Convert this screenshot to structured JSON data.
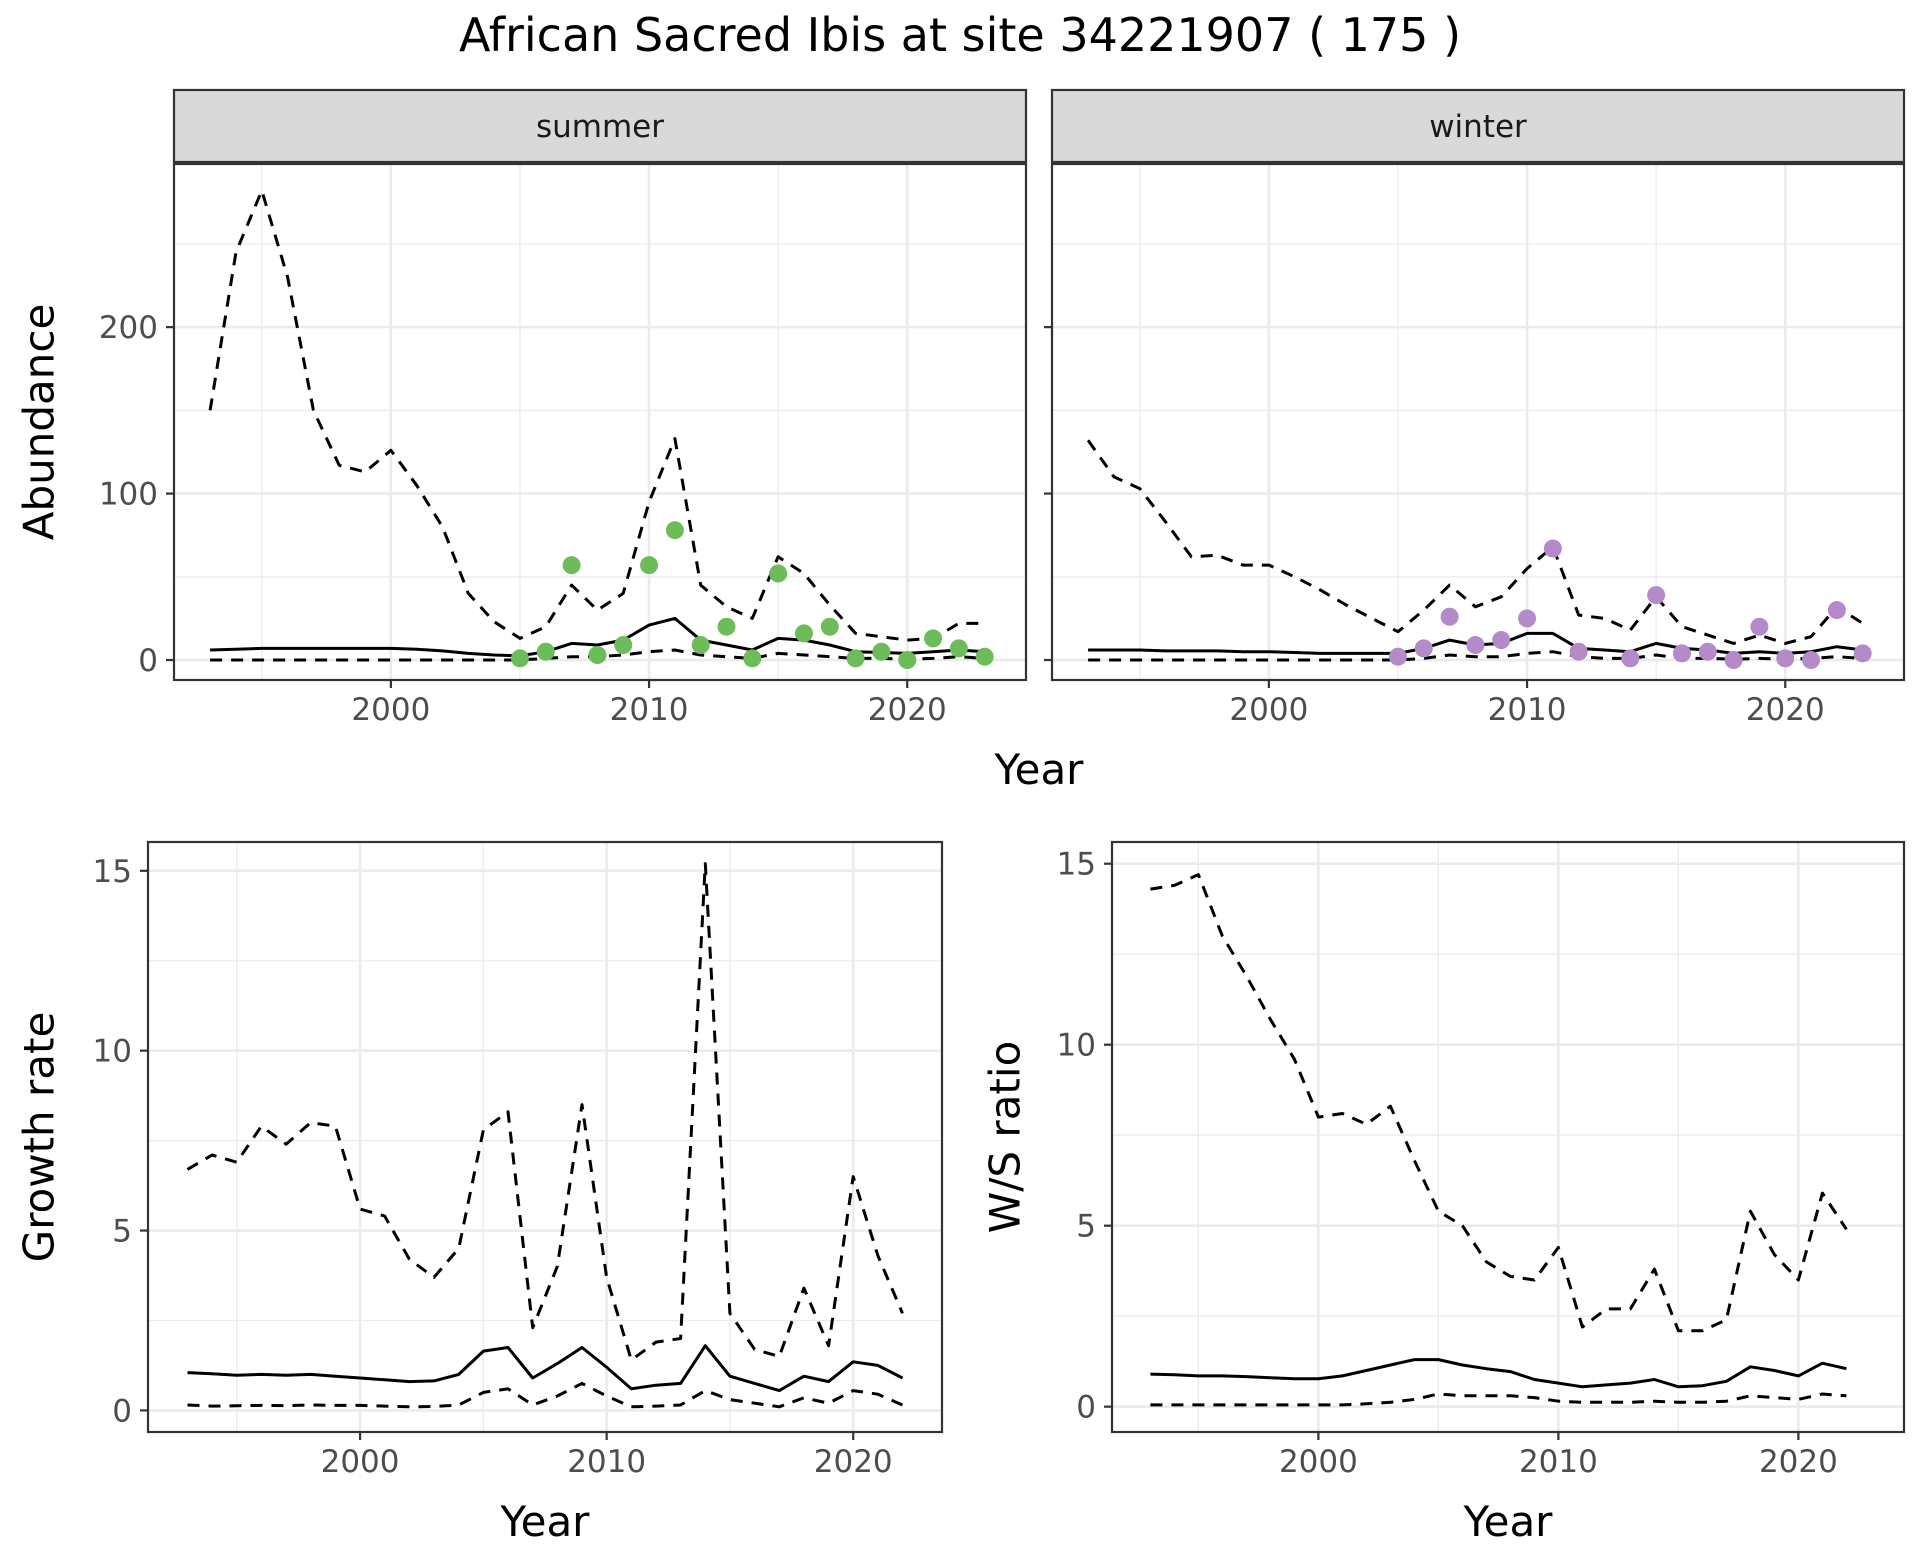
{
  "title": "African Sacred Ibis at site 34221907 ( 175 )",
  "colors": {
    "summer_points": "#6cbd5a",
    "winter_points": "#b48ac9",
    "line": "#000000",
    "strip_bg": "#d9d9d9",
    "grid": "#ebebeb"
  },
  "chart_data": [
    {
      "type": "line",
      "panel": "summer",
      "strip_label": "summer",
      "xlabel": "Year",
      "ylabel": "Abundance",
      "xlim": [
        1991.6,
        2024.6
      ],
      "ylim": [
        -12,
        298
      ],
      "x_ticks": [
        2000,
        2010,
        2020
      ],
      "y_ticks": [
        0,
        100,
        200
      ],
      "grid": true,
      "series": [
        {
          "style": "dashed",
          "x": [
            1993,
            1994,
            1995,
            1996,
            1997,
            1998,
            1999,
            2000,
            2001,
            2002,
            2003,
            2004,
            2005,
            2006,
            2007,
            2008,
            2009,
            2010,
            2011,
            2012,
            2013,
            2014,
            2015,
            2016,
            2017,
            2018,
            2019,
            2020,
            2021,
            2022,
            2023
          ],
          "y": [
            150,
            245,
            282,
            230,
            150,
            117,
            113,
            126,
            105,
            80,
            40,
            23,
            13,
            20,
            45,
            30,
            40,
            95,
            133,
            45,
            32,
            25,
            62,
            52,
            33,
            16,
            14,
            12,
            13,
            22,
            22
          ]
        },
        {
          "style": "solid",
          "x": [
            1993,
            1994,
            1995,
            1996,
            1997,
            1998,
            1999,
            2000,
            2001,
            2002,
            2003,
            2004,
            2005,
            2006,
            2007,
            2008,
            2009,
            2010,
            2011,
            2012,
            2013,
            2014,
            2015,
            2016,
            2017,
            2018,
            2019,
            2020,
            2021,
            2022,
            2023
          ],
          "y": [
            6,
            6.5,
            7,
            7,
            7,
            7,
            7,
            7,
            6.5,
            5.5,
            4,
            3,
            2.5,
            5,
            10,
            9,
            12,
            21,
            25,
            12,
            9,
            6,
            13,
            12,
            9,
            5,
            4.5,
            4,
            5,
            6,
            5
          ]
        },
        {
          "style": "dashed",
          "x": [
            1993,
            1994,
            1995,
            1996,
            1997,
            1998,
            1999,
            2000,
            2001,
            2002,
            2003,
            2004,
            2005,
            2006,
            2007,
            2008,
            2009,
            2010,
            2011,
            2012,
            2013,
            2014,
            2015,
            2016,
            2017,
            2018,
            2019,
            2020,
            2021,
            2022,
            2023
          ],
          "y": [
            0,
            0,
            0,
            0,
            0,
            0,
            0,
            0,
            0,
            0,
            0,
            0,
            0,
            1,
            2,
            2,
            3,
            5,
            6,
            3,
            2,
            1,
            4,
            3,
            2,
            1,
            1,
            0.5,
            1,
            2,
            1
          ]
        },
        {
          "style": "points",
          "x": [
            2005,
            2006,
            2007,
            2008,
            2009,
            2010,
            2011,
            2012,
            2013,
            2014,
            2015,
            2016,
            2017,
            2018,
            2019,
            2020,
            2021,
            2022,
            2023
          ],
          "y": [
            1,
            5,
            57,
            3,
            9,
            57,
            78,
            9,
            20,
            1,
            52,
            16,
            20,
            1,
            5,
            0,
            13,
            7,
            2
          ]
        }
      ]
    },
    {
      "type": "line",
      "panel": "winter",
      "strip_label": "winter",
      "xlabel": "Year",
      "ylabel": "Abundance",
      "xlim": [
        1991.6,
        2024.6
      ],
      "ylim": [
        -12,
        298
      ],
      "x_ticks": [
        2000,
        2010,
        2020
      ],
      "y_ticks": [
        0,
        100,
        200
      ],
      "grid": true,
      "series": [
        {
          "style": "dashed",
          "x": [
            1993,
            1994,
            1995,
            1996,
            1997,
            1998,
            1999,
            2000,
            2001,
            2002,
            2003,
            2004,
            2005,
            2006,
            2007,
            2008,
            2009,
            2010,
            2011,
            2012,
            2013,
            2014,
            2015,
            2016,
            2017,
            2018,
            2019,
            2020,
            2021,
            2022,
            2023
          ],
          "y": [
            132,
            110,
            103,
            83,
            62,
            63,
            57,
            57,
            50,
            42,
            33,
            25,
            17,
            30,
            45,
            32,
            38,
            55,
            68,
            27,
            25,
            18,
            38,
            20,
            15,
            10,
            15,
            10,
            14,
            32,
            22
          ]
        },
        {
          "style": "solid",
          "x": [
            1993,
            1994,
            1995,
            1996,
            1997,
            1998,
            1999,
            2000,
            2001,
            2002,
            2003,
            2004,
            2005,
            2006,
            2007,
            2008,
            2009,
            2010,
            2011,
            2012,
            2013,
            2014,
            2015,
            2016,
            2017,
            2018,
            2019,
            2020,
            2021,
            2022,
            2023
          ],
          "y": [
            6,
            6,
            6,
            5.5,
            5.5,
            5.5,
            5,
            5,
            4.5,
            4,
            4,
            4,
            4,
            7,
            12,
            9,
            10,
            16,
            16,
            7,
            6,
            5,
            10,
            7,
            6,
            4,
            5,
            4,
            5,
            8,
            6
          ]
        },
        {
          "style": "dashed",
          "x": [
            1993,
            1994,
            1995,
            1996,
            1997,
            1998,
            1999,
            2000,
            2001,
            2002,
            2003,
            2004,
            2005,
            2006,
            2007,
            2008,
            2009,
            2010,
            2011,
            2012,
            2013,
            2014,
            2015,
            2016,
            2017,
            2018,
            2019,
            2020,
            2021,
            2022,
            2023
          ],
          "y": [
            0,
            0,
            0,
            0,
            0,
            0,
            0,
            0,
            0,
            0,
            0,
            0,
            0,
            1,
            3,
            2,
            2,
            4,
            5,
            2,
            1,
            1,
            3,
            1,
            1,
            0.5,
            1,
            0.5,
            1,
            2,
            1
          ]
        },
        {
          "style": "points",
          "x": [
            2005,
            2006,
            2007,
            2008,
            2009,
            2010,
            2011,
            2012,
            2014,
            2015,
            2016,
            2017,
            2018,
            2019,
            2020,
            2021,
            2022,
            2023
          ],
          "y": [
            2,
            7,
            26,
            9,
            12,
            25,
            67,
            5,
            1,
            39,
            4,
            5,
            0,
            20,
            1,
            0,
            30,
            4
          ]
        }
      ]
    },
    {
      "type": "line",
      "panel": "growth",
      "xlabel": "Year",
      "ylabel": "Growth rate",
      "xlim": [
        1991.4,
        2023.6
      ],
      "ylim": [
        -0.6,
        15.8
      ],
      "x_ticks": [
        2000,
        2010,
        2020
      ],
      "y_ticks": [
        0,
        5,
        10,
        15
      ],
      "grid": true,
      "series": [
        {
          "style": "dashed",
          "x": [
            1993,
            1994,
            1995,
            1996,
            1997,
            1998,
            1999,
            2000,
            2001,
            2002,
            2003,
            2004,
            2005,
            2006,
            2007,
            2008,
            2009,
            2010,
            2011,
            2012,
            2013,
            2014,
            2015,
            2016,
            2017,
            2018,
            2019,
            2020,
            2021,
            2022
          ],
          "y": [
            6.7,
            7.1,
            6.9,
            7.9,
            7.4,
            8.0,
            7.9,
            5.6,
            5.4,
            4.2,
            3.7,
            4.5,
            7.8,
            8.3,
            2.3,
            4.0,
            8.5,
            3.7,
            1.4,
            1.9,
            2.0,
            15.2,
            2.7,
            1.7,
            1.5,
            3.4,
            1.8,
            6.5,
            4.3,
            2.7
          ]
        },
        {
          "style": "solid",
          "x": [
            1993,
            1994,
            1995,
            1996,
            1997,
            1998,
            1999,
            2000,
            2001,
            2002,
            2003,
            2004,
            2005,
            2006,
            2007,
            2008,
            2009,
            2010,
            2011,
            2012,
            2013,
            2014,
            2015,
            2016,
            2017,
            2018,
            2019,
            2020,
            2021,
            2022
          ],
          "y": [
            1.05,
            1.02,
            0.98,
            1.0,
            0.98,
            1.0,
            0.95,
            0.9,
            0.85,
            0.8,
            0.82,
            1.0,
            1.65,
            1.75,
            0.9,
            1.3,
            1.75,
            1.2,
            0.6,
            0.7,
            0.75,
            1.8,
            0.95,
            0.75,
            0.55,
            0.95,
            0.8,
            1.35,
            1.25,
            0.9
          ]
        },
        {
          "style": "dashed",
          "x": [
            1993,
            1994,
            1995,
            1996,
            1997,
            1998,
            1999,
            2000,
            2001,
            2002,
            2003,
            2004,
            2005,
            2006,
            2007,
            2008,
            2009,
            2010,
            2011,
            2012,
            2013,
            2014,
            2015,
            2016,
            2017,
            2018,
            2019,
            2020,
            2021,
            2022
          ],
          "y": [
            0.15,
            0.12,
            0.13,
            0.14,
            0.13,
            0.15,
            0.14,
            0.14,
            0.12,
            0.1,
            0.11,
            0.15,
            0.5,
            0.6,
            0.15,
            0.4,
            0.75,
            0.4,
            0.1,
            0.12,
            0.15,
            0.55,
            0.3,
            0.2,
            0.1,
            0.35,
            0.2,
            0.55,
            0.45,
            0.15
          ]
        }
      ]
    },
    {
      "type": "line",
      "panel": "ws_ratio",
      "xlabel": "Year",
      "ylabel": "W/S ratio",
      "xlim": [
        1991.4,
        2024.4
      ],
      "ylim": [
        -0.7,
        15.6
      ],
      "x_ticks": [
        2000,
        2010,
        2020
      ],
      "y_ticks": [
        0,
        5,
        10,
        15
      ],
      "grid": true,
      "series": [
        {
          "style": "dashed",
          "x": [
            1993,
            1994,
            1995,
            1996,
            1997,
            1998,
            1999,
            2000,
            2001,
            2002,
            2003,
            2004,
            2005,
            2006,
            2007,
            2008,
            2009,
            2010,
            2011,
            2012,
            2013,
            2014,
            2015,
            2016,
            2017,
            2018,
            2019,
            2020,
            2021,
            2022
          ],
          "y": [
            14.3,
            14.4,
            14.7,
            13.0,
            11.9,
            10.7,
            9.6,
            8.0,
            8.1,
            7.8,
            8.3,
            6.8,
            5.4,
            5.0,
            4.0,
            3.6,
            3.5,
            4.4,
            2.2,
            2.7,
            2.7,
            3.8,
            2.1,
            2.1,
            2.4,
            5.4,
            4.2,
            3.5,
            5.9,
            4.9
          ]
        },
        {
          "style": "solid",
          "x": [
            1993,
            1994,
            1995,
            1996,
            1997,
            1998,
            1999,
            2000,
            2001,
            2002,
            2003,
            2004,
            2005,
            2006,
            2007,
            2008,
            2009,
            2010,
            2011,
            2012,
            2013,
            2014,
            2015,
            2016,
            2017,
            2018,
            2019,
            2020,
            2021,
            2022
          ],
          "y": [
            0.9,
            0.88,
            0.85,
            0.85,
            0.83,
            0.8,
            0.77,
            0.77,
            0.85,
            1.0,
            1.15,
            1.3,
            1.3,
            1.15,
            1.05,
            0.97,
            0.75,
            0.65,
            0.55,
            0.6,
            0.65,
            0.75,
            0.55,
            0.58,
            0.7,
            1.1,
            1.0,
            0.85,
            1.2,
            1.05
          ]
        },
        {
          "style": "dashed",
          "x": [
            1993,
            1994,
            1995,
            1996,
            1997,
            1998,
            1999,
            2000,
            2001,
            2002,
            2003,
            2004,
            2005,
            2006,
            2007,
            2008,
            2009,
            2010,
            2011,
            2012,
            2013,
            2014,
            2015,
            2016,
            2017,
            2018,
            2019,
            2020,
            2021,
            2022
          ],
          "y": [
            0.05,
            0.05,
            0.05,
            0.05,
            0.05,
            0.05,
            0.05,
            0.05,
            0.05,
            0.08,
            0.12,
            0.2,
            0.35,
            0.3,
            0.3,
            0.3,
            0.25,
            0.15,
            0.12,
            0.12,
            0.12,
            0.15,
            0.12,
            0.12,
            0.15,
            0.3,
            0.25,
            0.2,
            0.35,
            0.3
          ]
        }
      ]
    }
  ]
}
